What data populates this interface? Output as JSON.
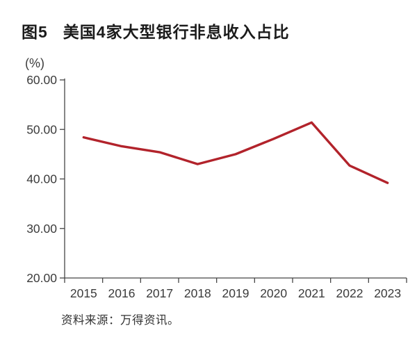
{
  "figure": {
    "tag": "图5",
    "title": "美国4家大型银行非息收入占比",
    "unit": "(%)",
    "source": "资料来源：万得资讯。"
  },
  "chart_data": {
    "type": "line",
    "title": "美国4家大型银行非息收入占比",
    "categories": [
      "2015",
      "2016",
      "2017",
      "2018",
      "2019",
      "2020",
      "2021",
      "2022",
      "2023"
    ],
    "values": [
      48.4,
      46.6,
      45.4,
      43.0,
      45.0,
      48.1,
      51.4,
      42.7,
      39.2
    ],
    "ylabel": "(%)",
    "xlabel": "",
    "ylim": [
      20,
      60
    ],
    "y_ticks": [
      "60.00",
      "50.00",
      "40.00",
      "30.00",
      "20.00"
    ],
    "grid": false,
    "legend": false,
    "line_color": "#b2232b",
    "axis_color": "#454545",
    "text_color": "#3b3b3b"
  }
}
